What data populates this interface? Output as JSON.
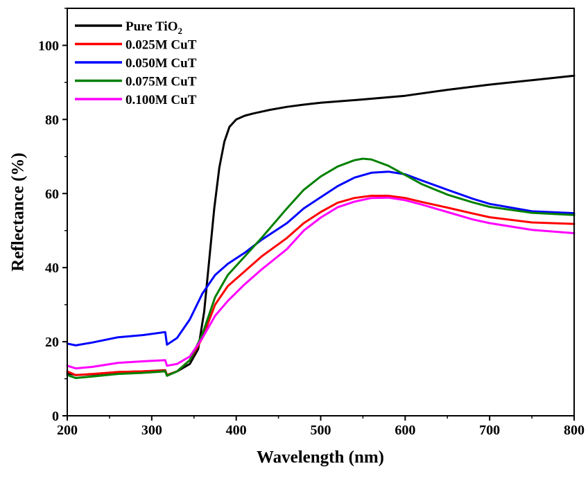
{
  "chart_data": {
    "type": "line",
    "title": "",
    "xlabel": "Wavelength (nm)",
    "ylabel": "Reflectance (%)",
    "xlim": [
      200,
      800
    ],
    "ylim": [
      0,
      110
    ],
    "x_ticks": [
      200,
      300,
      400,
      500,
      600,
      700,
      800
    ],
    "y_ticks": [
      0,
      20,
      40,
      60,
      80,
      100
    ],
    "grid": false,
    "legend_position": "top-left",
    "series": [
      {
        "name": "Pure TiO2",
        "legend_main": "Pure TiO",
        "legend_sub": "2",
        "color": "#000000",
        "points": [
          [
            200,
            11.5
          ],
          [
            210,
            11.0
          ],
          [
            230,
            11.2
          ],
          [
            260,
            11.8
          ],
          [
            290,
            12.0
          ],
          [
            316,
            12.3
          ],
          [
            318,
            11.0
          ],
          [
            330,
            12.0
          ],
          [
            345,
            14.0
          ],
          [
            355,
            18.0
          ],
          [
            362,
            28.0
          ],
          [
            368,
            42.0
          ],
          [
            374,
            56.0
          ],
          [
            380,
            67.0
          ],
          [
            386,
            74.0
          ],
          [
            392,
            78.0
          ],
          [
            400,
            80.0
          ],
          [
            410,
            81.0
          ],
          [
            420,
            81.6
          ],
          [
            440,
            82.6
          ],
          [
            460,
            83.4
          ],
          [
            480,
            84.0
          ],
          [
            500,
            84.5
          ],
          [
            550,
            85.4
          ],
          [
            600,
            86.4
          ],
          [
            650,
            88.0
          ],
          [
            700,
            89.4
          ],
          [
            750,
            90.6
          ],
          [
            800,
            91.8
          ]
        ]
      },
      {
        "name": "0.025M CuT",
        "color": "#ff0000",
        "points": [
          [
            200,
            12.0
          ],
          [
            210,
            11.0
          ],
          [
            230,
            11.3
          ],
          [
            260,
            11.8
          ],
          [
            290,
            12.0
          ],
          [
            316,
            12.2
          ],
          [
            318,
            11.0
          ],
          [
            330,
            12.0
          ],
          [
            345,
            15.0
          ],
          [
            360,
            21.0
          ],
          [
            375,
            30.0
          ],
          [
            390,
            35.0
          ],
          [
            410,
            39.0
          ],
          [
            430,
            43.0
          ],
          [
            460,
            48.0
          ],
          [
            480,
            52.0
          ],
          [
            500,
            55.0
          ],
          [
            520,
            57.5
          ],
          [
            540,
            58.8
          ],
          [
            560,
            59.4
          ],
          [
            580,
            59.4
          ],
          [
            600,
            58.8
          ],
          [
            620,
            57.7
          ],
          [
            650,
            56.2
          ],
          [
            680,
            54.6
          ],
          [
            700,
            53.6
          ],
          [
            750,
            52.2
          ],
          [
            800,
            51.8
          ]
        ]
      },
      {
        "name": "0.050M CuT",
        "color": "#0000ff",
        "points": [
          [
            200,
            19.5
          ],
          [
            210,
            19.0
          ],
          [
            230,
            19.8
          ],
          [
            260,
            21.2
          ],
          [
            290,
            21.8
          ],
          [
            316,
            22.6
          ],
          [
            318,
            19.2
          ],
          [
            330,
            21.0
          ],
          [
            345,
            26.0
          ],
          [
            360,
            33.0
          ],
          [
            375,
            38.0
          ],
          [
            390,
            41.0
          ],
          [
            410,
            44.0
          ],
          [
            430,
            47.5
          ],
          [
            460,
            52.0
          ],
          [
            480,
            56.0
          ],
          [
            500,
            59.0
          ],
          [
            520,
            62.0
          ],
          [
            540,
            64.3
          ],
          [
            560,
            65.6
          ],
          [
            580,
            65.9
          ],
          [
            600,
            65.2
          ],
          [
            620,
            63.5
          ],
          [
            650,
            61.0
          ],
          [
            680,
            58.6
          ],
          [
            700,
            57.2
          ],
          [
            750,
            55.2
          ],
          [
            800,
            54.7
          ]
        ]
      },
      {
        "name": "0.075M CuT",
        "color": "#008000",
        "points": [
          [
            200,
            11.0
          ],
          [
            210,
            10.2
          ],
          [
            230,
            10.6
          ],
          [
            260,
            11.3
          ],
          [
            290,
            11.6
          ],
          [
            316,
            12.0
          ],
          [
            318,
            10.8
          ],
          [
            330,
            12.0
          ],
          [
            345,
            15.0
          ],
          [
            360,
            22.0
          ],
          [
            375,
            32.0
          ],
          [
            390,
            38.0
          ],
          [
            410,
            43.0
          ],
          [
            430,
            48.0
          ],
          [
            460,
            56.0
          ],
          [
            480,
            61.0
          ],
          [
            500,
            64.6
          ],
          [
            520,
            67.3
          ],
          [
            540,
            69.0
          ],
          [
            550,
            69.4
          ],
          [
            560,
            69.2
          ],
          [
            580,
            67.5
          ],
          [
            600,
            65.0
          ],
          [
            620,
            62.5
          ],
          [
            650,
            59.7
          ],
          [
            680,
            57.6
          ],
          [
            700,
            56.4
          ],
          [
            750,
            54.8
          ],
          [
            800,
            54.2
          ]
        ]
      },
      {
        "name": "0.100M CuT",
        "color": "#ff00ff",
        "points": [
          [
            200,
            13.5
          ],
          [
            210,
            12.8
          ],
          [
            230,
            13.2
          ],
          [
            260,
            14.3
          ],
          [
            290,
            14.7
          ],
          [
            316,
            15.0
          ],
          [
            318,
            13.5
          ],
          [
            330,
            14.0
          ],
          [
            345,
            16.0
          ],
          [
            360,
            21.0
          ],
          [
            375,
            27.0
          ],
          [
            390,
            31.0
          ],
          [
            410,
            35.5
          ],
          [
            430,
            39.5
          ],
          [
            460,
            45.0
          ],
          [
            480,
            50.0
          ],
          [
            500,
            53.5
          ],
          [
            520,
            56.3
          ],
          [
            540,
            57.8
          ],
          [
            560,
            58.8
          ],
          [
            580,
            58.9
          ],
          [
            600,
            58.2
          ],
          [
            620,
            57.0
          ],
          [
            650,
            55.0
          ],
          [
            680,
            53.0
          ],
          [
            700,
            52.0
          ],
          [
            750,
            50.2
          ],
          [
            800,
            49.3
          ]
        ]
      }
    ]
  }
}
